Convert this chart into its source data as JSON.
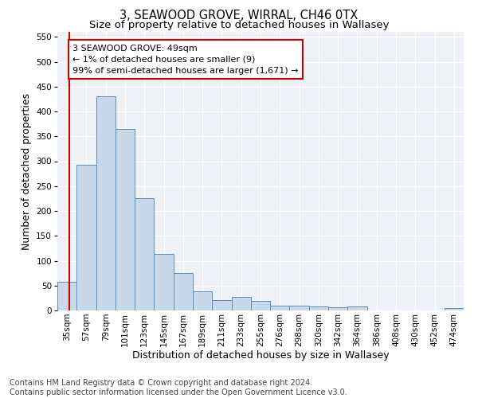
{
  "title": "3, SEAWOOD GROVE, WIRRAL, CH46 0TX",
  "subtitle": "Size of property relative to detached houses in Wallasey",
  "xlabel": "Distribution of detached houses by size in Wallasey",
  "ylabel": "Number of detached properties",
  "footnote1": "Contains HM Land Registry data © Crown copyright and database right 2024.",
  "footnote2": "Contains public sector information licensed under the Open Government Licence v3.0.",
  "categories": [
    "35sqm",
    "57sqm",
    "79sqm",
    "101sqm",
    "123sqm",
    "145sqm",
    "167sqm",
    "189sqm",
    "211sqm",
    "233sqm",
    "255sqm",
    "276sqm",
    "298sqm",
    "320sqm",
    "342sqm",
    "364sqm",
    "386sqm",
    "408sqm",
    "430sqm",
    "452sqm",
    "474sqm"
  ],
  "values": [
    57,
    293,
    430,
    365,
    226,
    113,
    75,
    38,
    21,
    28,
    20,
    10,
    10,
    8,
    6,
    8,
    0,
    0,
    0,
    0,
    5
  ],
  "bar_color": "#c8d8e8",
  "bar_edge_color": "#5b8db8",
  "marker_color": "#cc0000",
  "annotation_text": "3 SEAWOOD GROVE: 49sqm\n← 1% of detached houses are smaller (9)\n99% of semi-detached houses are larger (1,671) →",
  "annotation_box_color": "#cc0000",
  "ylim": [
    0,
    560
  ],
  "yticks": [
    0,
    50,
    100,
    150,
    200,
    250,
    300,
    350,
    400,
    450,
    500,
    550
  ],
  "bg_color": "#eef2f7",
  "grid_color": "#ffffff",
  "title_fontsize": 10.5,
  "subtitle_fontsize": 9.5,
  "axis_label_fontsize": 9,
  "tick_fontsize": 7.5,
  "annotation_fontsize": 8,
  "footnote_fontsize": 7
}
